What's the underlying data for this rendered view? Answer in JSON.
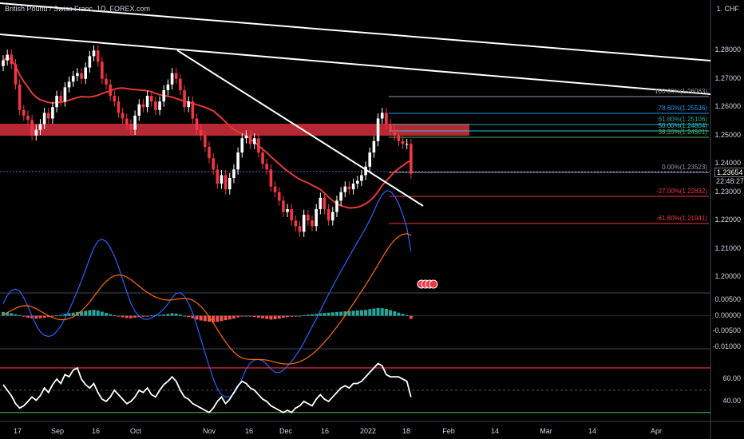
{
  "header": {
    "symbol_title": "British Pound / Swiss Franc, 1D, FOREX.com",
    "currency": "1. CHF"
  },
  "price_axis": {
    "ticks": [
      "1.28000",
      "1.27000",
      "1.26000",
      "1.25000",
      "1.24000",
      "1.23000",
      "1.22000",
      "1.21000",
      "1.20000"
    ]
  },
  "current_price": {
    "value": "1.23654",
    "countdown": "22:48:27"
  },
  "macd_axis": {
    "ticks": [
      "0.00500",
      "0.00000",
      "-0.00500",
      "-0.01000"
    ]
  },
  "rsi_axis": {
    "ticks": [
      "60.00",
      "40.00"
    ]
  },
  "time_axis": {
    "labels": [
      "17",
      "Sep",
      "16",
      "Oct",
      "Nov",
      "16",
      "Dec",
      "16",
      "2022",
      "18",
      "Feb",
      "14",
      "Mar",
      "14",
      "Apr"
    ]
  },
  "fibonacci": [
    {
      "label": "100.00%(1.26063)",
      "color": "#9598a1"
    },
    {
      "label": "78.60%(1.25536)",
      "color": "#2196f3"
    },
    {
      "label": "61.80%(1.25106)",
      "color": "#26a69a"
    },
    {
      "label": "50.00%(1.24804)",
      "color": "#26c6da"
    },
    {
      "label": "38.20%(1.24501)",
      "color": "#4caf50"
    },
    {
      "label": "0.00%(1.23523)",
      "color": "#9598a1"
    },
    {
      "label": "-27.00%(1.22832)",
      "color": "#f23645"
    },
    {
      "label": "-61.80%(1.21941)",
      "color": "#f23645"
    }
  ],
  "colors": {
    "up": "#ffffff",
    "down": "#f23645",
    "sma": "#e53935",
    "zone": "#f23645",
    "trend": "#ffffff",
    "macd_line": "#2962ff",
    "signal_line": "#ff6d00",
    "hist_up": "#26a69a",
    "hist_down": "#ef5350",
    "rsi_line": "#ffffff",
    "rsi_upper": "#f23645",
    "rsi_lower": "#4caf50"
  },
  "chart_data": {
    "type": "candlestick",
    "symbol": "GBPCHF",
    "timeframe": "1D",
    "ylim": [
      1.195,
      1.295
    ],
    "closes": [
      1.2765,
      1.2785,
      1.2752,
      1.268,
      1.259,
      1.257,
      1.2555,
      1.25,
      1.252,
      1.254,
      1.258,
      1.256,
      1.26,
      1.264,
      1.262,
      1.267,
      1.269,
      1.271,
      1.272,
      1.27,
      1.274,
      1.278,
      1.28,
      1.276,
      1.27,
      1.268,
      1.264,
      1.262,
      1.258,
      1.256,
      1.254,
      1.252,
      1.257,
      1.261,
      1.26,
      1.264,
      1.262,
      1.259,
      1.262,
      1.266,
      1.268,
      1.272,
      1.27,
      1.266,
      1.26,
      1.262,
      1.256,
      1.252,
      1.25,
      1.246,
      1.242,
      1.238,
      1.233,
      1.236,
      1.231,
      1.235,
      1.238,
      1.244,
      1.249,
      1.25,
      1.247,
      1.249,
      1.244,
      1.24,
      1.238,
      1.232,
      1.23,
      1.227,
      1.223,
      1.224,
      1.22,
      1.218,
      1.216,
      1.222,
      1.22,
      1.218,
      1.224,
      1.228,
      1.224,
      1.22,
      1.223,
      1.227,
      1.23,
      1.232,
      1.231,
      1.233,
      1.234,
      1.236,
      1.239,
      1.244,
      1.248,
      1.256,
      1.258,
      1.254,
      1.252,
      1.25,
      1.248,
      1.247,
      1.247,
      1.2365
    ],
    "sma_period_note": "",
    "macd_hist": [
      0.0012,
      0.001,
      0.0008,
      0.0005,
      0.0002,
      -0.0003,
      -0.0006,
      -0.0008,
      -0.0009,
      -0.0008,
      -0.0006,
      -0.0004,
      -0.0002,
      0.0001,
      0.0003,
      0.0006,
      0.0008,
      0.001,
      0.0012,
      0.0014,
      0.0016,
      0.0018,
      0.0019,
      0.0017,
      0.0013,
      0.0009,
      0.0005,
      0.0002,
      -0.0002,
      -0.0005,
      -0.0007,
      -0.0008,
      -0.0006,
      -0.0004,
      -0.0003,
      -0.0001,
      0.0001,
      0.0002,
      0.0003,
      0.0004,
      0.0006,
      0.0008,
      0.0007,
      0.0004,
      0.0,
      -0.0004,
      -0.0008,
      -0.0012,
      -0.0015,
      -0.0017,
      -0.0019,
      -0.002,
      -0.0019,
      -0.0017,
      -0.0014,
      -0.0012,
      -0.0009,
      -0.0005,
      -0.0002,
      0.0,
      -0.0002,
      -0.0004,
      -0.0006,
      -0.0008,
      -0.001,
      -0.0012,
      -0.0011,
      -0.0009,
      -0.0006,
      -0.0004,
      -0.0003,
      -0.0001,
      0.0,
      0.0002,
      0.0004,
      0.0005,
      0.0006,
      0.0008,
      0.0009,
      0.001,
      0.0011,
      0.0012,
      0.0013,
      0.0014,
      0.0015,
      0.0016,
      0.0017,
      0.0018,
      0.0019,
      0.0021,
      0.0023,
      0.0025,
      0.0024,
      0.0022,
      0.0018,
      0.0014,
      0.001,
      0.0006,
      0.0002,
      -0.001
    ],
    "rsi": [
      55,
      50,
      45,
      38,
      34,
      36,
      40,
      44,
      41,
      45,
      52,
      48,
      55,
      60,
      56,
      64,
      62,
      68,
      70,
      60,
      55,
      52,
      56,
      48,
      42,
      40,
      44,
      50,
      46,
      42,
      38,
      40,
      44,
      50,
      48,
      52,
      46,
      44,
      50,
      55,
      58,
      62,
      58,
      50,
      44,
      42,
      38,
      36,
      34,
      32,
      30,
      34,
      40,
      44,
      38,
      42,
      48,
      54,
      58,
      56,
      52,
      50,
      46,
      42,
      40,
      36,
      34,
      32,
      30,
      32,
      30,
      34,
      36,
      40,
      38,
      36,
      42,
      46,
      42,
      40,
      44,
      48,
      52,
      54,
      52,
      56,
      56,
      58,
      62,
      66,
      70,
      74,
      72,
      64,
      62,
      62,
      62,
      60,
      58,
      44
    ],
    "rsi_levels": [
      70,
      30
    ]
  }
}
